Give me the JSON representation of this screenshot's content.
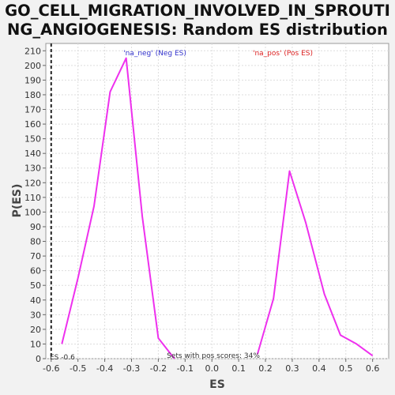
{
  "title_line1": "GO_CELL_MIGRATION_INVOLVED_IN_SPROUTI",
  "title_line2": "NG_ANGIOGENESIS: Random ES distribution",
  "chart_data": {
    "type": "line",
    "title": "GO_CELL_MIGRATION_INVOLVED_IN_SPROUTING_ANGIOGENESIS: Random ES distribution",
    "xlabel": "ES",
    "ylabel": "P(ES)",
    "xlim": [
      -0.62,
      0.66
    ],
    "ylim": [
      0,
      215
    ],
    "x_ticks": [
      -0.6,
      -0.5,
      -0.4,
      -0.3,
      -0.2,
      -0.1,
      0.0,
      0.1,
      0.2,
      0.3,
      0.4,
      0.5,
      0.6
    ],
    "x_tick_labels": [
      "-0.6",
      "-0.5",
      "-0.4",
      "-0.3",
      "-0.2",
      "-0.1",
      "0.0",
      "0.1",
      "0.2",
      "0.3",
      "0.4",
      "0.5",
      "0.6"
    ],
    "y_ticks": [
      0,
      10,
      20,
      30,
      40,
      50,
      60,
      70,
      80,
      90,
      100,
      110,
      120,
      130,
      140,
      150,
      160,
      170,
      180,
      190,
      200,
      210
    ],
    "grid": true,
    "color": "#ee30ee",
    "series": [
      {
        "x": [
          -0.56,
          -0.5,
          -0.44,
          -0.38,
          -0.32,
          -0.26,
          -0.2,
          -0.14
        ],
        "y": [
          10,
          55,
          104,
          182,
          205,
          97,
          14,
          0
        ]
      },
      {
        "x": [
          0.17,
          0.23,
          0.29,
          0.35,
          0.42,
          0.48,
          0.54,
          0.6
        ],
        "y": [
          3,
          41,
          128,
          93,
          44,
          16,
          10,
          2
        ]
      }
    ],
    "vline_x": -0.6,
    "annotations": {
      "neg_label": "'na_neg' (Neg ES)",
      "pos_label": "'na_pos' (Pos ES)",
      "es_label": "ES -0.6",
      "pos_scores_label": "Sets with pos scores: 34%"
    }
  }
}
